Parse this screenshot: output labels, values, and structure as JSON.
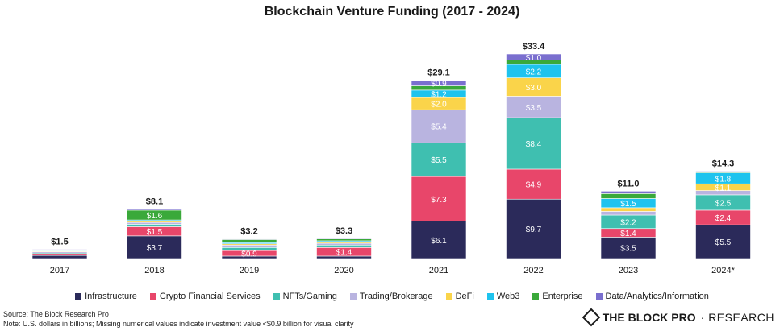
{
  "chart_data": {
    "type": "bar",
    "stacked": true,
    "title": "Blockchain Venture Funding (2017 - 2024)",
    "categories": [
      "2017",
      "2018",
      "2019",
      "2020",
      "2021",
      "2022",
      "2023",
      "2024*"
    ],
    "totals": [
      "$1.5",
      "$8.1",
      "$3.2",
      "$3.3",
      "$29.1",
      "$33.4",
      "$11.0",
      "$14.3"
    ],
    "total_values": [
      1.5,
      8.1,
      3.2,
      3.3,
      29.1,
      33.4,
      11.0,
      14.3
    ],
    "ylim": [
      0,
      33.4
    ],
    "grid": false,
    "legend_position": "bottom",
    "series": [
      {
        "name": "Infrastructure",
        "color": "#2b2a5a",
        "values": [
          0.5,
          3.7,
          0.4,
          0.4,
          6.1,
          9.7,
          3.5,
          5.5
        ],
        "labels": [
          "",
          "$3.7",
          "",
          "",
          "$6.1",
          "$9.7",
          "$3.5",
          "$5.5"
        ]
      },
      {
        "name": "Crypto Financial Services",
        "color": "#e8466a",
        "values": [
          0.2,
          1.5,
          0.9,
          1.4,
          7.3,
          4.9,
          1.4,
          2.4
        ],
        "labels": [
          "",
          "$1.5",
          "$0.9",
          "$1.4",
          "$7.3",
          "$4.9",
          "$1.4",
          "$2.4"
        ]
      },
      {
        "name": "NFTs/Gaming",
        "color": "#3fbfb0",
        "values": [
          0.2,
          0.4,
          0.5,
          0.4,
          5.5,
          8.4,
          2.2,
          2.5
        ],
        "labels": [
          "",
          "",
          "",
          "",
          "$5.5",
          "$8.4",
          "$2.2",
          "$2.5"
        ]
      },
      {
        "name": "Trading/Brokerage",
        "color": "#b9b4e0",
        "values": [
          0.2,
          0.3,
          0.4,
          0.3,
          5.4,
          3.5,
          0.6,
          0.7
        ],
        "labels": [
          "",
          "",
          "",
          "",
          "$5.4",
          "$3.5",
          "",
          ""
        ]
      },
      {
        "name": "DeFi",
        "color": "#fad44a",
        "values": [
          0.1,
          0.2,
          0.2,
          0.2,
          2.0,
          3.0,
          0.6,
          1.1
        ],
        "labels": [
          "",
          "",
          "",
          "",
          "$2.0",
          "$3.0",
          "",
          "$1.1"
        ]
      },
      {
        "name": "Web3",
        "color": "#1ec3ee",
        "values": [
          0.1,
          0.2,
          0.2,
          0.2,
          1.2,
          2.2,
          1.5,
          1.8
        ],
        "labels": [
          "",
          "",
          "",
          "",
          "$1.2",
          "$2.2",
          "$1.5",
          "$1.8"
        ]
      },
      {
        "name": "Enterprise",
        "color": "#3aa93a",
        "values": [
          0.1,
          1.6,
          0.5,
          0.3,
          0.7,
          0.7,
          0.8,
          0.2
        ],
        "labels": [
          "",
          "$1.6",
          "",
          "",
          "",
          "",
          "",
          ""
        ]
      },
      {
        "name": "Data/Analytics/Information",
        "color": "#7a6fcf",
        "values": [
          0.1,
          0.2,
          0.1,
          0.1,
          0.9,
          1.0,
          0.4,
          0.1
        ],
        "labels": [
          "",
          "",
          "",
          "",
          "$0.9",
          "$1.0",
          "",
          ""
        ]
      }
    ]
  },
  "footer": {
    "source": "Source: The Block Research Pro",
    "note": "Note: U.S. dollars in billions; Missing numerical values indicate investment value <$0.9 billion for visual clarity"
  },
  "logo": {
    "brand": "THE BLOCK PRO",
    "suffix": "· RESEARCH"
  }
}
